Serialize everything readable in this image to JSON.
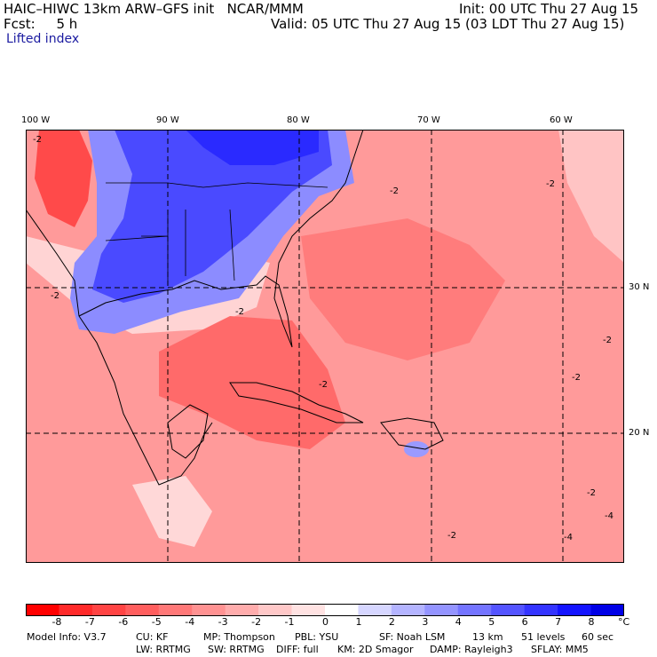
{
  "header": {
    "title": "HAIC–HIWC 13km ARW–GFS init   NCAR/MMM",
    "init": "Init: 00 UTC Thu 27 Aug 15",
    "fcst": "Fcst:     5 h",
    "valid": "Valid: 05 UTC Thu 27 Aug 15 (03 LDT Thu 27 Aug 15)",
    "field": "Lifted index"
  },
  "map": {
    "lon_labels": [
      "100 W",
      "90 W",
      "80 W",
      "70 W",
      "60 W"
    ],
    "lat_labels": [
      "30 N",
      "20 N"
    ],
    "contour_labels": [
      "-2",
      "-4"
    ]
  },
  "colorbar": {
    "labels": [
      "-8",
      "-7",
      "-6",
      "-5",
      "-4",
      "-3",
      "-2",
      "-1",
      "0",
      "1",
      "2",
      "3",
      "4",
      "5",
      "6",
      "7",
      "8"
    ],
    "unit": "°C",
    "colors": [
      "#ff0000",
      "#ff2a2a",
      "#ff4444",
      "#ff5e5e",
      "#ff7878",
      "#ff9292",
      "#ffacac",
      "#ffc8c8",
      "#ffe2e2",
      "#ffffff",
      "#d6d6ff",
      "#b4b4ff",
      "#9494ff",
      "#7474ff",
      "#5454ff",
      "#3434ff",
      "#1414ff",
      "#0000e6"
    ]
  },
  "footer": {
    "model": "Model Info: V3.7",
    "cu": "CU: KF",
    "mp": "MP: Thompson",
    "pbl": "PBL: YSU",
    "sf": "SF: Noah LSM",
    "res": "13 km",
    "levels": "51 levels",
    "dt": "60 sec",
    "lw": "LW: RRTMG",
    "sw": "SW: RRTMG",
    "diff": "DIFF: full",
    "km": "KM: 2D Smagor",
    "damp": "DAMP: Rayleigh3",
    "sflay": "SFLAY: MM5"
  }
}
